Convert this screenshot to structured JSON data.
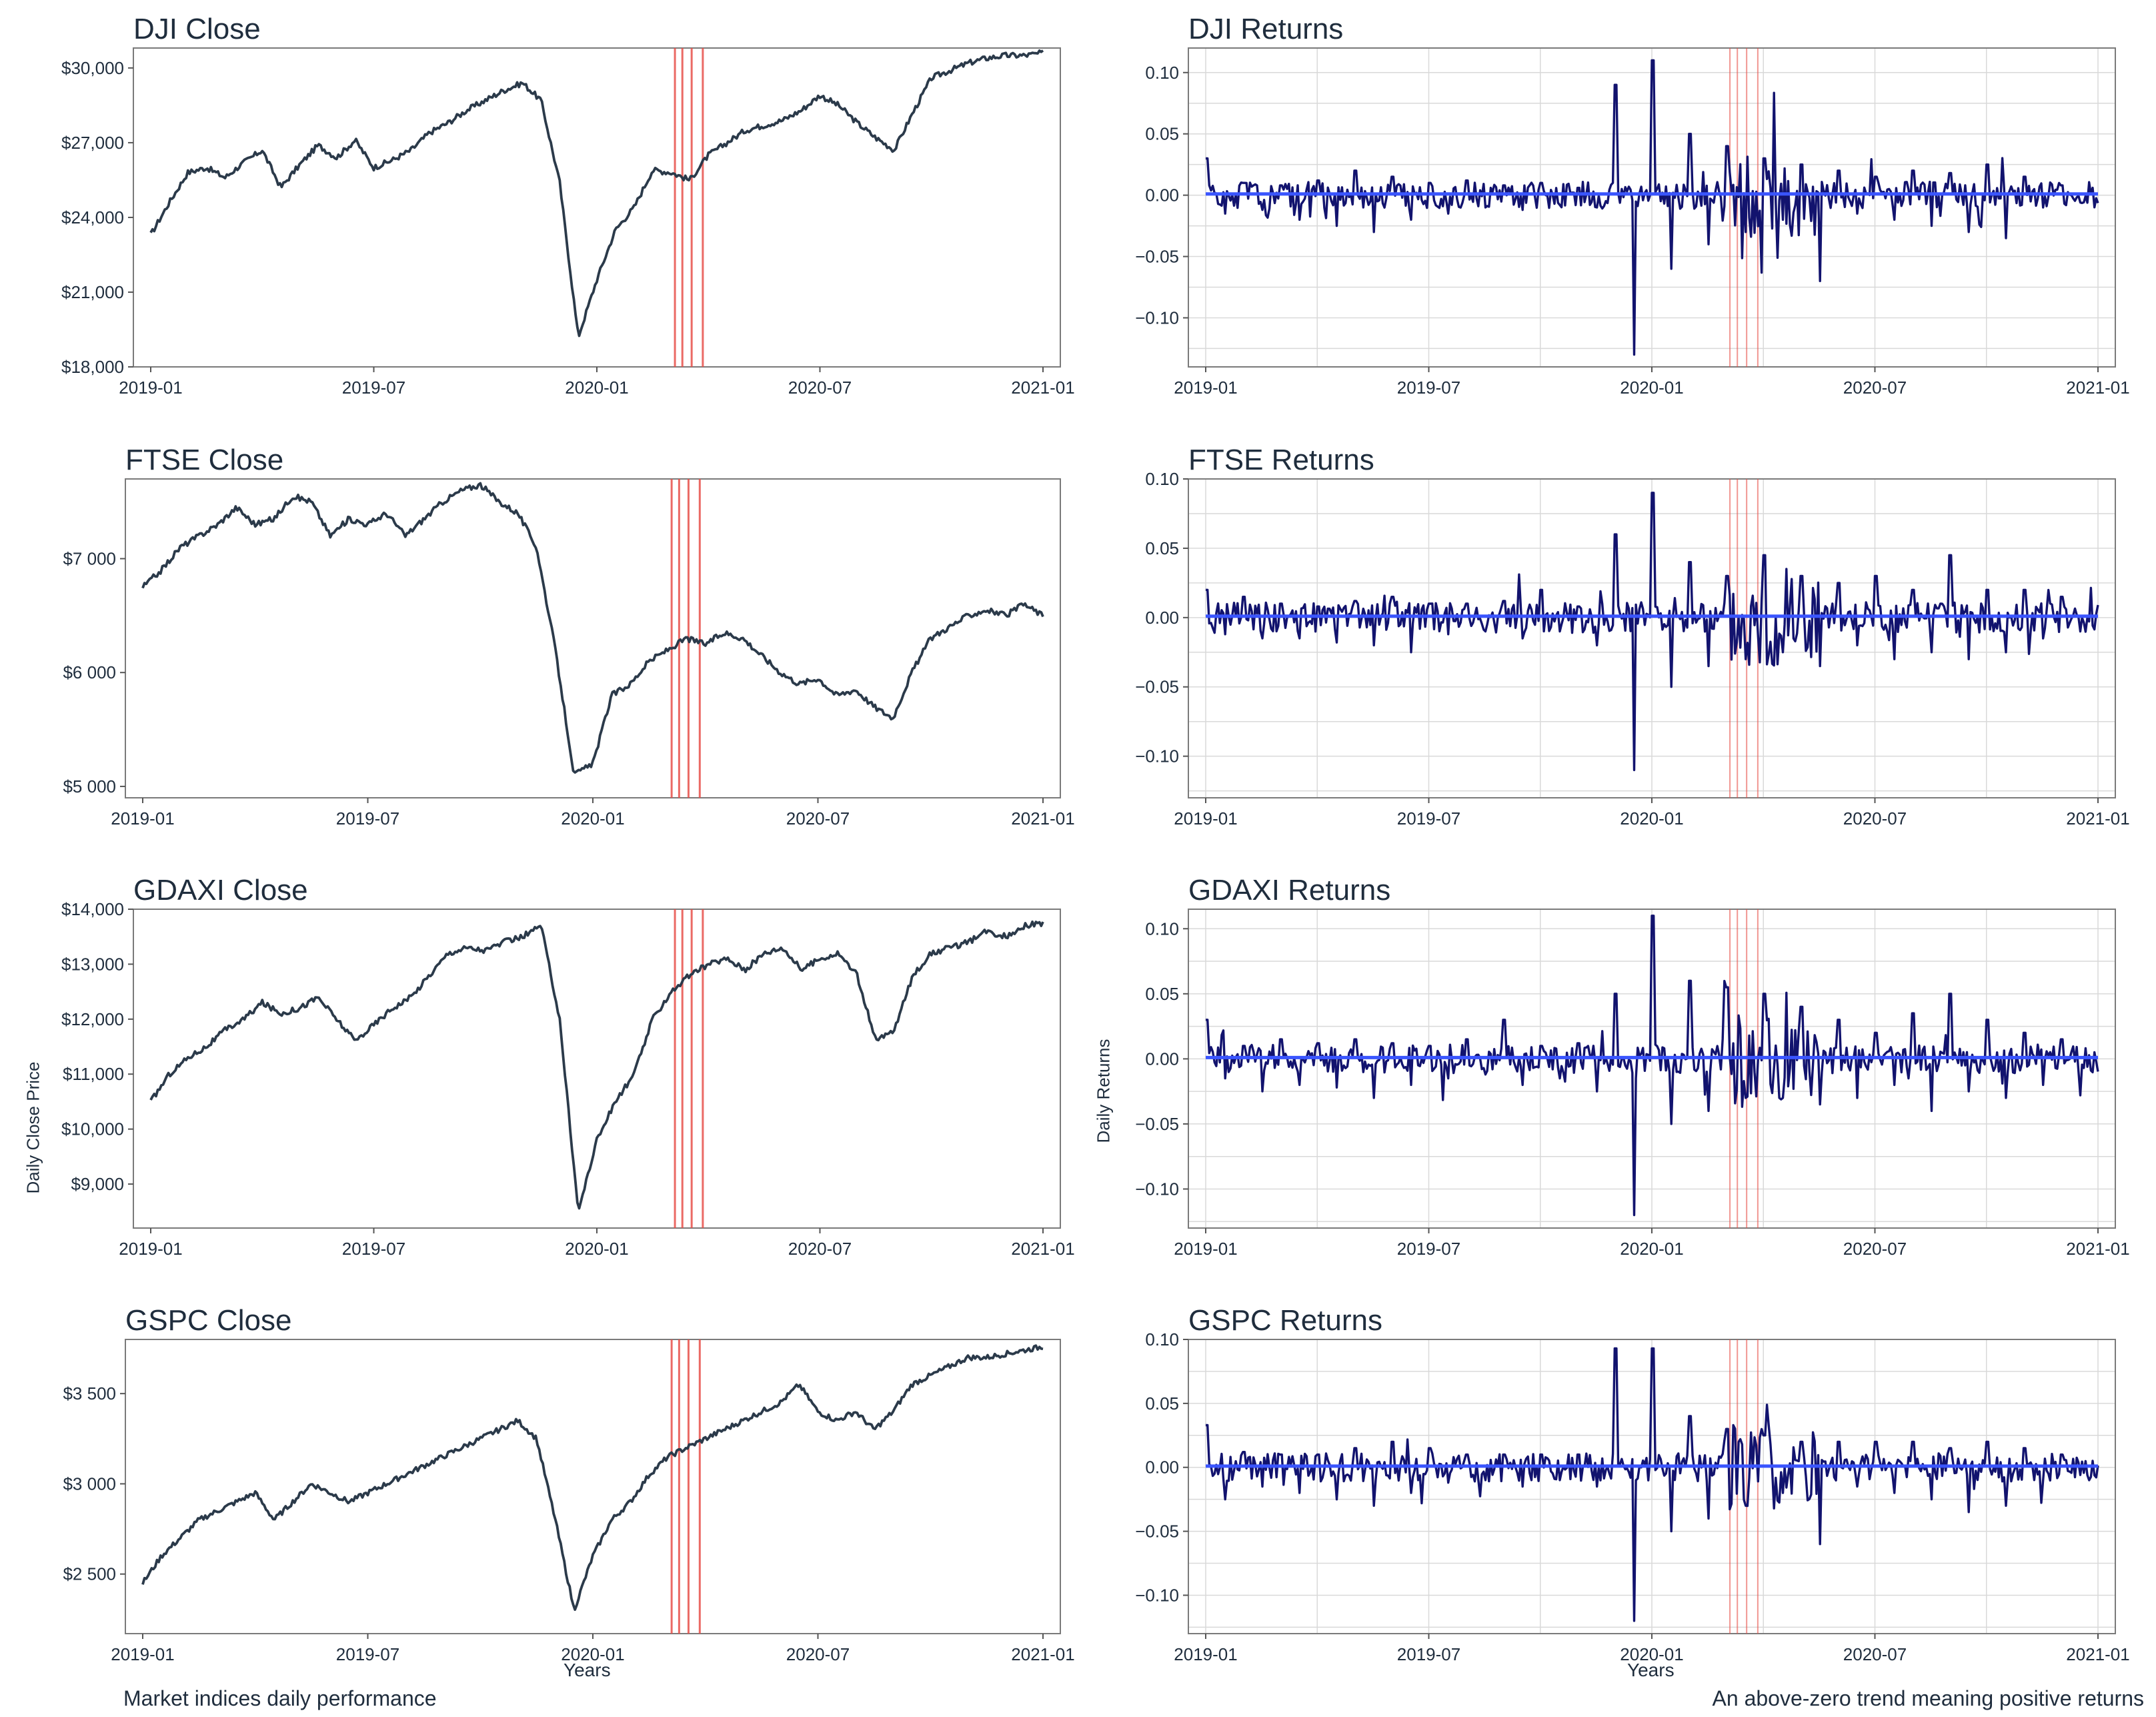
{
  "captions": {
    "left": "Market indices daily performance",
    "right": "An above-zero trend meaning positive returns"
  },
  "axis_labels": {
    "close_y": "Daily Close Price",
    "returns_y": "Daily Returns",
    "x": "Years"
  },
  "colors": {
    "close_line": "#2b3a4a",
    "returns_line": "#12136e",
    "trend_line": "#3a55ff",
    "event_lines": "#e8504a",
    "grid": "#d9d9d9",
    "text": "#1f2d3d"
  },
  "chart_data": [
    {
      "type": "line",
      "kind": "close",
      "title": "DJI Close",
      "x_ticks": [
        "2019-01",
        "2019-07",
        "2020-01",
        "2020-07",
        "2021-01"
      ],
      "ylim": [
        18000,
        30800
      ],
      "y_ticks": [
        18000,
        21000,
        24000,
        27000,
        30000
      ],
      "y_tick_labels": [
        "$18,000",
        "$21,000",
        "$24,000",
        "$27,000",
        "$30,000"
      ],
      "x": [
        0.0,
        0.5,
        1,
        1.5,
        2,
        2.5,
        3,
        3.5,
        4,
        4.5,
        5,
        5.5,
        6,
        6.5,
        7,
        7.5,
        8,
        8.5,
        9,
        9.5,
        10,
        10.5,
        11,
        11.5,
        12,
        12.5,
        13,
        13.5,
        14,
        14.5,
        15,
        15.5,
        16,
        16.5,
        17,
        17.5,
        18,
        18.5,
        19,
        19.5,
        20,
        20.5,
        21,
        21.5,
        22,
        22.5,
        23,
        23.5,
        24
      ],
      "values": [
        23300,
        24600,
        25800,
        26000,
        25600,
        26200,
        26700,
        25200,
        26100,
        26900,
        26400,
        27100,
        26000,
        26300,
        26700,
        27400,
        27800,
        28300,
        28700,
        29100,
        29400,
        28700,
        25400,
        19200,
        21500,
        23500,
        24400,
        25900,
        25800,
        25500,
        26500,
        27000,
        27500,
        27700,
        27900,
        28300,
        28900,
        28500,
        27800,
        27200,
        26700,
        28200,
        29600,
        29900,
        30200,
        30400,
        30500,
        30500,
        30600
      ],
      "event_months": [
        14.1,
        14.3,
        14.55,
        14.85
      ]
    },
    {
      "type": "line",
      "kind": "returns",
      "title": "DJI Returns",
      "x_ticks": [
        "2019-01",
        "2019-07",
        "2020-01",
        "2020-07",
        "2021-01"
      ],
      "ylim": [
        -0.14,
        0.12
      ],
      "y_ticks": [
        -0.1,
        -0.05,
        0.0,
        0.05,
        0.1
      ],
      "y_tick_labels": [
        "−0.10",
        "−0.05",
        "0.00",
        "0.05",
        "0.10"
      ],
      "x": [
        0.0,
        0.5,
        1,
        1.5,
        2,
        2.5,
        3,
        3.5,
        4,
        4.5,
        5,
        5.5,
        6,
        6.5,
        7,
        7.5,
        8,
        8.5,
        9,
        9.5,
        10,
        10.5,
        11,
        11.5,
        12,
        12.5,
        13,
        13.5,
        14,
        14.5,
        15,
        15.5,
        16,
        16.5,
        17,
        17.5,
        18,
        18.5,
        19,
        19.5,
        20,
        20.5,
        21,
        21.5,
        22,
        22.5,
        23,
        23.5,
        24
      ],
      "values": [
        0.03,
        -0.015,
        0.01,
        -0.012,
        0.008,
        -0.02,
        0.012,
        -0.025,
        0.02,
        -0.03,
        0.015,
        -0.02,
        0.01,
        -0.015,
        0.012,
        -0.01,
        0.008,
        -0.012,
        0.01,
        -0.008,
        0.006,
        -0.01,
        0.09,
        -0.13,
        0.11,
        -0.06,
        0.05,
        -0.04,
        0.04,
        -0.03,
        0.03,
        -0.02,
        0.025,
        -0.07,
        0.02,
        -0.015,
        0.015,
        -0.02,
        0.02,
        -0.025,
        0.018,
        -0.03,
        0.025,
        -0.035,
        0.015,
        -0.01,
        0.008,
        -0.006,
        0.005
      ],
      "event_months": [
        14.1,
        14.3,
        14.55,
        14.85
      ]
    },
    {
      "type": "line",
      "kind": "close",
      "title": "FTSE Close",
      "x_ticks": [
        "2019-01",
        "2019-07",
        "2020-01",
        "2020-07",
        "2021-01"
      ],
      "ylim": [
        4900,
        7700
      ],
      "y_ticks": [
        5000,
        6000,
        7000
      ],
      "y_tick_labels": [
        "$5 000",
        "$6 000",
        "$7 000"
      ],
      "x": [
        0.0,
        0.5,
        1,
        1.5,
        2,
        2.5,
        3,
        3.5,
        4,
        4.5,
        5,
        5.5,
        6,
        6.5,
        7,
        7.5,
        8,
        8.5,
        9,
        9.5,
        10,
        10.5,
        11,
        11.5,
        12,
        12.5,
        13,
        13.5,
        14,
        14.5,
        15,
        15.5,
        16,
        16.5,
        17,
        17.5,
        18,
        18.5,
        19,
        19.5,
        20,
        20.5,
        21,
        21.5,
        22,
        22.5,
        23,
        23.5,
        24
      ],
      "values": [
        6750,
        6900,
        7100,
        7200,
        7300,
        7450,
        7300,
        7350,
        7550,
        7500,
        7200,
        7350,
        7300,
        7400,
        7200,
        7350,
        7500,
        7600,
        7650,
        7500,
        7400,
        7100,
        6200,
        5100,
        5200,
        5800,
        5900,
        6100,
        6200,
        6300,
        6250,
        6350,
        6300,
        6150,
        6000,
        5900,
        5950,
        5800,
        5850,
        5700,
        5600,
        6000,
        6300,
        6400,
        6500,
        6550,
        6500,
        6600,
        6500
      ],
      "event_months": [
        14.1,
        14.3,
        14.55,
        14.85
      ]
    },
    {
      "type": "line",
      "kind": "returns",
      "title": "FTSE Returns",
      "x_ticks": [
        "2019-01",
        "2019-07",
        "2020-01",
        "2020-07",
        "2021-01"
      ],
      "ylim": [
        -0.13,
        0.1
      ],
      "y_ticks": [
        -0.1,
        -0.05,
        0.0,
        0.05,
        0.1
      ],
      "y_tick_labels": [
        "−0.10",
        "−0.05",
        "0.00",
        "0.05",
        "0.10"
      ],
      "x": [
        0.0,
        0.5,
        1,
        1.5,
        2,
        2.5,
        3,
        3.5,
        4,
        4.5,
        5,
        5.5,
        6,
        6.5,
        7,
        7.5,
        8,
        8.5,
        9,
        9.5,
        10,
        10.5,
        11,
        11.5,
        12,
        12.5,
        13,
        13.5,
        14,
        14.5,
        15,
        15.5,
        16,
        16.5,
        17,
        17.5,
        18,
        18.5,
        19,
        19.5,
        20,
        20.5,
        21,
        21.5,
        22,
        22.5,
        23,
        23.5,
        24
      ],
      "values": [
        0.02,
        -0.012,
        0.015,
        -0.015,
        0.01,
        -0.015,
        0.008,
        -0.018,
        0.012,
        -0.02,
        0.015,
        -0.025,
        0.01,
        -0.012,
        0.01,
        -0.01,
        0.012,
        -0.015,
        0.02,
        -0.01,
        0.008,
        -0.02,
        0.06,
        -0.11,
        0.09,
        -0.05,
        0.04,
        -0.035,
        0.03,
        -0.03,
        0.045,
        -0.025,
        0.03,
        -0.035,
        0.025,
        -0.02,
        0.03,
        -0.03,
        0.02,
        -0.025,
        0.045,
        -0.03,
        0.02,
        -0.025,
        0.02,
        -0.015,
        0.015,
        -0.01,
        -0.01
      ],
      "event_months": [
        14.1,
        14.3,
        14.55,
        14.85
      ]
    },
    {
      "type": "line",
      "kind": "close",
      "title": "GDAXI Close",
      "x_ticks": [
        "2019-01",
        "2019-07",
        "2020-01",
        "2020-07",
        "2021-01"
      ],
      "ylim": [
        8200,
        14000
      ],
      "y_ticks": [
        9000,
        10000,
        11000,
        12000,
        13000,
        14000
      ],
      "y_tick_labels": [
        "$9,000",
        "$10,000",
        "$11,000",
        "$12,000",
        "$13,000",
        "$14,000"
      ],
      "x": [
        0.0,
        0.5,
        1,
        1.5,
        2,
        2.5,
        3,
        3.5,
        4,
        4.5,
        5,
        5.5,
        6,
        6.5,
        7,
        7.5,
        8,
        8.5,
        9,
        9.5,
        10,
        10.5,
        11,
        11.5,
        12,
        12.5,
        13,
        13.5,
        14,
        14.5,
        15,
        15.5,
        16,
        16.5,
        17,
        17.5,
        18,
        18.5,
        19,
        19.5,
        20,
        20.5,
        21,
        21.5,
        22,
        22.5,
        23,
        23.5,
        24
      ],
      "values": [
        10500,
        11000,
        11300,
        11500,
        11800,
        12000,
        12300,
        12100,
        12200,
        12400,
        12000,
        11600,
        11900,
        12200,
        12400,
        12800,
        13200,
        13300,
        13250,
        13400,
        13500,
        13700,
        12000,
        8500,
        9800,
        10500,
        11000,
        12000,
        12500,
        12800,
        13000,
        13100,
        12900,
        13200,
        13300,
        12900,
        13100,
        13200,
        12800,
        11600,
        11800,
        12800,
        13200,
        13300,
        13400,
        13600,
        13500,
        13700,
        13750
      ],
      "event_months": [
        14.1,
        14.3,
        14.55,
        14.85
      ]
    },
    {
      "type": "line",
      "kind": "returns",
      "title": "GDAXI Returns",
      "x_ticks": [
        "2019-01",
        "2019-07",
        "2020-01",
        "2020-07",
        "2021-01"
      ],
      "ylim": [
        -0.13,
        0.115
      ],
      "y_ticks": [
        -0.1,
        -0.05,
        0.0,
        0.05,
        0.1
      ],
      "y_tick_labels": [
        "−0.10",
        "−0.05",
        "0.00",
        "0.05",
        "0.10"
      ],
      "x": [
        0.0,
        0.5,
        1,
        1.5,
        2,
        2.5,
        3,
        3.5,
        4,
        4.5,
        5,
        5.5,
        6,
        6.5,
        7,
        7.5,
        8,
        8.5,
        9,
        9.5,
        10,
        10.5,
        11,
        11.5,
        12,
        12.5,
        13,
        13.5,
        14,
        14.5,
        15,
        15.5,
        16,
        16.5,
        17,
        17.5,
        18,
        18.5,
        19,
        19.5,
        20,
        20.5,
        21,
        21.5,
        22,
        22.5,
        23,
        23.5,
        24
      ],
      "values": [
        0.03,
        -0.015,
        0.01,
        -0.025,
        0.015,
        -0.02,
        0.012,
        -0.022,
        0.015,
        -0.03,
        0.012,
        -0.02,
        0.01,
        -0.015,
        0.015,
        -0.012,
        0.03,
        -0.02,
        0.01,
        -0.015,
        0.012,
        -0.025,
        0.05,
        -0.12,
        0.11,
        -0.05,
        0.06,
        -0.04,
        0.055,
        -0.03,
        0.05,
        -0.03,
        0.04,
        -0.035,
        0.03,
        -0.03,
        0.02,
        -0.02,
        0.035,
        -0.04,
        0.05,
        -0.025,
        0.03,
        -0.03,
        0.02,
        -0.02,
        0.015,
        -0.028,
        0.0
      ],
      "event_months": [
        14.1,
        14.3,
        14.55,
        14.85
      ]
    },
    {
      "type": "line",
      "kind": "close",
      "title": "GSPC Close",
      "x_ticks": [
        "2019-01",
        "2019-07",
        "2020-01",
        "2020-07",
        "2021-01"
      ],
      "ylim": [
        2170,
        3800
      ],
      "y_ticks": [
        2500,
        3000,
        3500
      ],
      "y_tick_labels": [
        "$2 500",
        "$3 000",
        "$3 500"
      ],
      "x": [
        0.0,
        0.5,
        1,
        1.5,
        2,
        2.5,
        3,
        3.5,
        4,
        4.5,
        5,
        5.5,
        6,
        6.5,
        7,
        7.5,
        8,
        8.5,
        9,
        9.5,
        10,
        10.5,
        11,
        11.5,
        12,
        12.5,
        13,
        13.5,
        14,
        14.5,
        15,
        15.5,
        16,
        16.5,
        17,
        17.5,
        18,
        18.5,
        19,
        19.5,
        20,
        20.5,
        21,
        21.5,
        22,
        22.5,
        23,
        23.5,
        24
      ],
      "values": [
        2450,
        2600,
        2700,
        2800,
        2850,
        2900,
        2950,
        2800,
        2900,
        3000,
        2950,
        2900,
        2950,
        3000,
        3050,
        3100,
        3150,
        3200,
        3250,
        3300,
        3350,
        3250,
        2800,
        2300,
        2600,
        2800,
        2900,
        3050,
        3150,
        3200,
        3250,
        3300,
        3350,
        3400,
        3450,
        3550,
        3400,
        3350,
        3400,
        3300,
        3400,
        3550,
        3600,
        3650,
        3700,
        3700,
        3720,
        3740,
        3760
      ],
      "event_months": [
        14.1,
        14.3,
        14.55,
        14.85
      ]
    },
    {
      "type": "line",
      "kind": "returns",
      "title": "GSPC Returns",
      "x_ticks": [
        "2019-01",
        "2019-07",
        "2020-01",
        "2020-07",
        "2021-01"
      ],
      "ylim": [
        -0.13,
        0.1
      ],
      "y_ticks": [
        -0.1,
        -0.05,
        0.0,
        0.05,
        0.1
      ],
      "y_tick_labels": [
        "−0.10",
        "−0.05",
        "0.00",
        "0.05",
        "0.10"
      ],
      "x": [
        0.0,
        0.5,
        1,
        1.5,
        2,
        2.5,
        3,
        3.5,
        4,
        4.5,
        5,
        5.5,
        6,
        6.5,
        7,
        7.5,
        8,
        8.5,
        9,
        9.5,
        10,
        10.5,
        11,
        11.5,
        12,
        12.5,
        13,
        13.5,
        14,
        14.5,
        15,
        15.5,
        16,
        16.5,
        17,
        17.5,
        18,
        18.5,
        19,
        19.5,
        20,
        20.5,
        21,
        21.5,
        22,
        22.5,
        23,
        23.5,
        24
      ],
      "values": [
        0.033,
        -0.025,
        0.012,
        -0.015,
        0.01,
        -0.02,
        0.01,
        -0.025,
        0.015,
        -0.03,
        0.02,
        -0.02,
        0.015,
        -0.012,
        0.01,
        -0.01,
        0.01,
        -0.015,
        0.01,
        -0.01,
        0.01,
        -0.015,
        0.093,
        -0.12,
        0.093,
        -0.05,
        0.04,
        -0.04,
        0.03,
        -0.03,
        0.025,
        -0.02,
        0.02,
        -0.06,
        0.02,
        -0.015,
        0.02,
        -0.02,
        0.02,
        -0.025,
        0.015,
        -0.035,
        0.02,
        -0.03,
        0.015,
        -0.01,
        0.01,
        -0.006,
        0.005
      ],
      "event_months": [
        14.1,
        14.3,
        14.55,
        14.85
      ]
    }
  ]
}
